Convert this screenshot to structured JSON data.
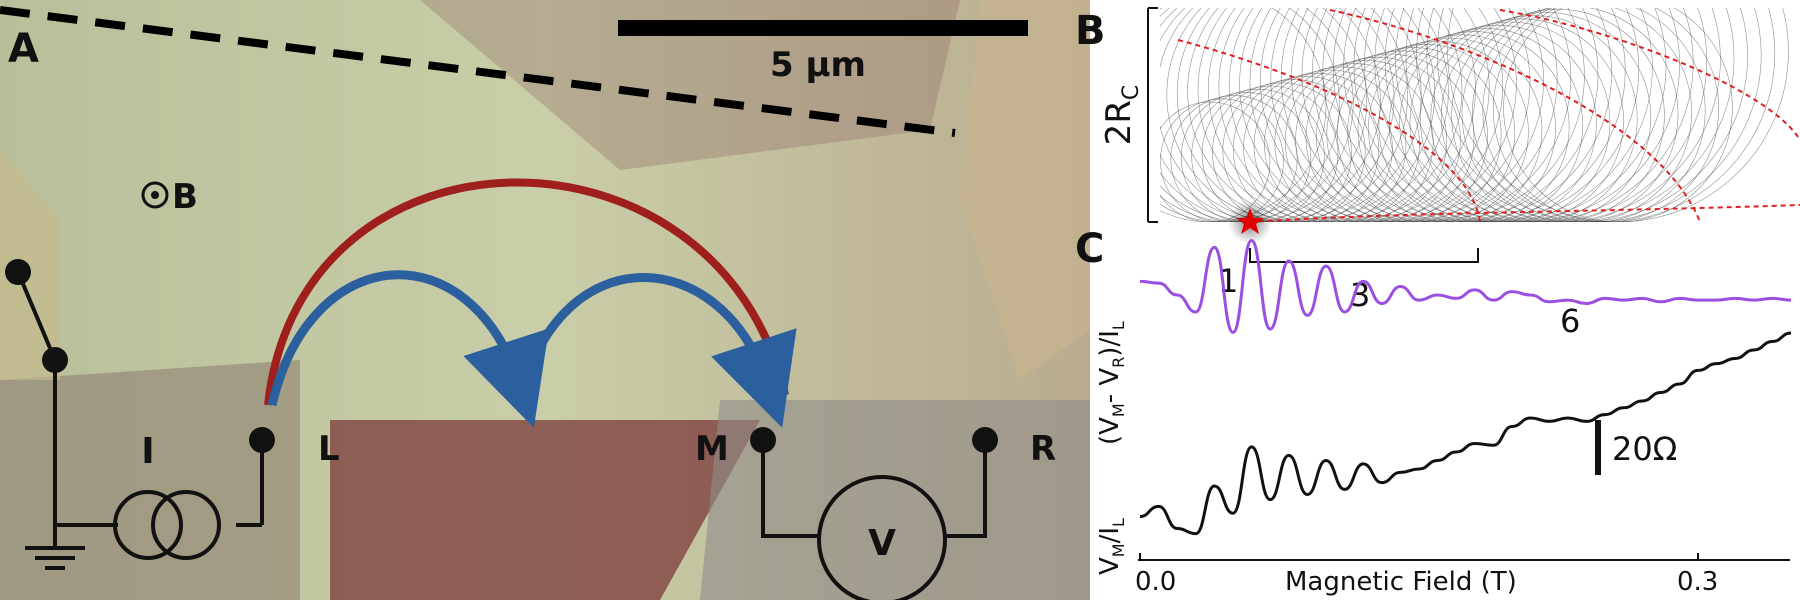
{
  "panels": {
    "a": {
      "letter": "A",
      "scale_bar_label": "5 µm",
      "field_label": "B",
      "current_source_label": "I",
      "voltmeter_label": "V",
      "contacts": [
        "L",
        "M",
        "R"
      ]
    },
    "b": {
      "letter": "B",
      "ylabel_main": "2R",
      "ylabel_sub": "C"
    },
    "c": {
      "letter": "C",
      "peak_labels": [
        "1",
        "3",
        "6"
      ],
      "scale_label": "20Ω",
      "xlabel": "Magnetic Field (T)",
      "ylabel_lower": "V_M/I_L",
      "ylabel_upper": "(V_M- V_R)/I_L"
    }
  },
  "chart_data": {
    "type": "line",
    "xlabel": "Magnetic Field (T)",
    "xlim": [
      0.0,
      0.36
    ],
    "xticks": [
      "0.0",
      "0.3"
    ],
    "scale_bar": "20Ω",
    "series": [
      {
        "name": "(V_M- V_R)/I_L",
        "color": "#9b4fe0",
        "x": [
          0.0,
          0.01,
          0.02,
          0.03,
          0.04,
          0.05,
          0.06,
          0.07,
          0.08,
          0.09,
          0.1,
          0.11,
          0.12,
          0.13,
          0.14,
          0.15,
          0.16,
          0.17,
          0.18,
          0.19,
          0.2,
          0.21,
          0.22,
          0.23,
          0.24,
          0.25,
          0.26,
          0.27,
          0.28,
          0.29,
          0.3,
          0.31,
          0.32,
          0.33,
          0.34,
          0.35
        ],
        "y": [
          58,
          57,
          50,
          40,
          78,
          28,
          82,
          30,
          70,
          38,
          67,
          40,
          58,
          45,
          55,
          47,
          50,
          48,
          53,
          47,
          52,
          50,
          46,
          47,
          45,
          48,
          47,
          48,
          46,
          48,
          47,
          47,
          48,
          47,
          48,
          47
        ]
      },
      {
        "name": "V_M/I_L",
        "color": "#111111",
        "x": [
          0.0,
          0.01,
          0.02,
          0.03,
          0.04,
          0.05,
          0.06,
          0.07,
          0.08,
          0.09,
          0.1,
          0.11,
          0.12,
          0.13,
          0.14,
          0.15,
          0.16,
          0.17,
          0.18,
          0.19,
          0.2,
          0.21,
          0.22,
          0.23,
          0.24,
          0.25,
          0.26,
          0.27,
          0.28,
          0.29,
          0.3,
          0.31,
          0.32,
          0.33,
          0.34,
          0.35
        ],
        "y": [
          2,
          8,
          -5,
          -8,
          20,
          4,
          43,
          12,
          38,
          15,
          35,
          18,
          33,
          22,
          28,
          30,
          35,
          40,
          45,
          44,
          55,
          60,
          58,
          60,
          58,
          62,
          66,
          70,
          75,
          80,
          88,
          92,
          95,
          100,
          105,
          110
        ]
      }
    ]
  }
}
